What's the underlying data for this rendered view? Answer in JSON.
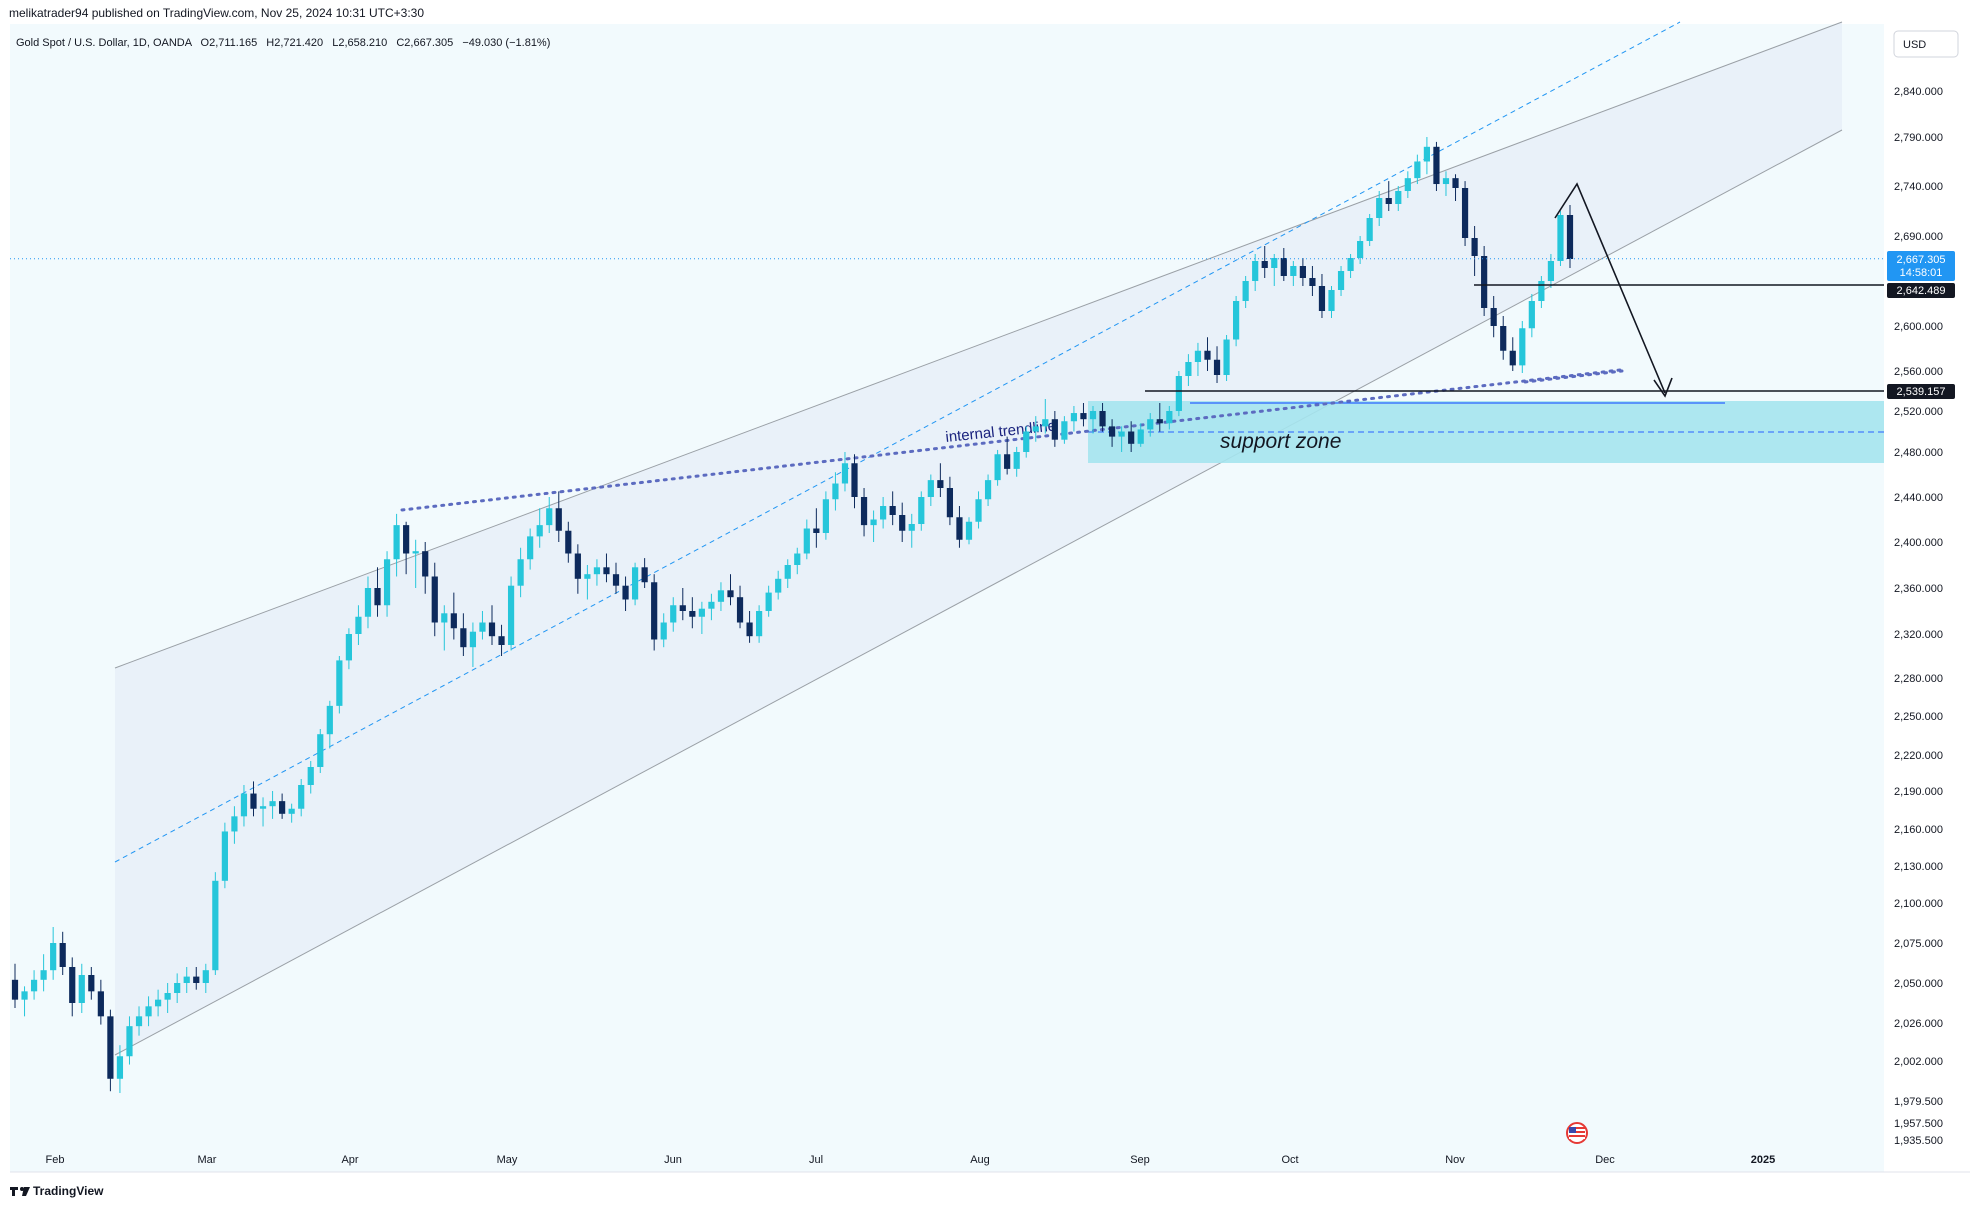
{
  "header": {
    "publish_line": "melikatrader94 published on TradingView.com, Nov 25, 2024 10:31 UTC+3:30"
  },
  "symbol_bar": {
    "name": "Gold Spot / U.S. Dollar, 1D, OANDA",
    "open": "O2,711.165",
    "high": "H2,721.420",
    "low": "L2,658.210",
    "close": "C2,667.305",
    "change": "−49.030 (−1.81%)"
  },
  "currency_button": "USD",
  "price_axis": {
    "ticks": [
      "2,840.000",
      "2,790.000",
      "2,740.000",
      "2,690.000",
      "2,600.000",
      "2,560.000",
      "2,520.000",
      "2,480.000",
      "2,440.000",
      "2,400.000",
      "2,360.000",
      "2,320.000",
      "2,280.000",
      "2,250.000",
      "2,220.000",
      "2,190.000",
      "2,160.000",
      "2,130.000",
      "2,100.000",
      "2,075.000",
      "2,050.000",
      "2,026.000",
      "2,002.000",
      "1,979.500",
      "1,957.500",
      "1,935.500"
    ],
    "current_price_label": "2,667.305",
    "countdown_label": "14:58:01",
    "level_1_label": "2,642.489",
    "level_2_label": "2,539.157"
  },
  "time_axis": {
    "labels": [
      "Feb",
      "Mar",
      "Apr",
      "May",
      "Jun",
      "Jul",
      "Aug",
      "Sep",
      "Oct",
      "Nov",
      "Dec",
      "2025"
    ]
  },
  "annotations": {
    "internal_trendline": "internal trendline",
    "support_zone": "support zone"
  },
  "footer": {
    "brand": "TradingView"
  },
  "colors": {
    "up": "#26c6da",
    "down": "#0d2a5c",
    "zone": "#a5e4ee",
    "channel": "#eef2f9",
    "mid_dash": "#2196f3",
    "trendline": "#5c6bc0",
    "current_price": "#2196f3",
    "level_tag": "#131722"
  },
  "chart_data": {
    "type": "candlestick",
    "symbol": "Gold Spot / U.S. Dollar",
    "interval": "1D",
    "y_range": [
      1920,
      2870
    ],
    "x_labels": [
      "Feb",
      "Mar",
      "Apr",
      "May",
      "Jun",
      "Jul",
      "Aug",
      "Sep",
      "Oct",
      "Nov",
      "Dec",
      "2025"
    ],
    "last_bar": {
      "open": 2711.165,
      "high": 2721.42,
      "low": 2658.21,
      "close": 2667.305
    },
    "levels": [
      2642.489,
      2539.157
    ],
    "support_zone": [
      2470,
      2530
    ],
    "candles": [
      [
        2052,
        2062,
        2035,
        2040
      ],
      [
        2040,
        2048,
        2030,
        2045
      ],
      [
        2045,
        2058,
        2040,
        2052
      ],
      [
        2052,
        2068,
        2045,
        2058
      ],
      [
        2058,
        2085,
        2052,
        2075
      ],
      [
        2075,
        2082,
        2055,
        2060
      ],
      [
        2060,
        2066,
        2030,
        2038
      ],
      [
        2038,
        2062,
        2032,
        2055
      ],
      [
        2055,
        2060,
        2040,
        2045
      ],
      [
        2045,
        2052,
        2025,
        2030
      ],
      [
        2030,
        2034,
        1985,
        1992
      ],
      [
        1992,
        2012,
        1984,
        2005
      ],
      [
        2005,
        2030,
        2000,
        2024
      ],
      [
        2024,
        2036,
        2018,
        2030
      ],
      [
        2030,
        2042,
        2024,
        2036
      ],
      [
        2036,
        2046,
        2030,
        2040
      ],
      [
        2040,
        2050,
        2032,
        2044
      ],
      [
        2044,
        2056,
        2038,
        2050
      ],
      [
        2050,
        2060,
        2044,
        2054
      ],
      [
        2054,
        2060,
        2046,
        2050
      ],
      [
        2050,
        2062,
        2044,
        2058
      ],
      [
        2058,
        2125,
        2055,
        2118
      ],
      [
        2118,
        2165,
        2112,
        2158
      ],
      [
        2158,
        2178,
        2148,
        2170
      ],
      [
        2170,
        2195,
        2162,
        2188
      ],
      [
        2188,
        2198,
        2170,
        2176
      ],
      [
        2176,
        2185,
        2162,
        2178
      ],
      [
        2178,
        2190,
        2168,
        2182
      ],
      [
        2182,
        2188,
        2168,
        2172
      ],
      [
        2172,
        2180,
        2165,
        2176
      ],
      [
        2176,
        2200,
        2170,
        2195
      ],
      [
        2195,
        2215,
        2188,
        2210
      ],
      [
        2210,
        2240,
        2205,
        2236
      ],
      [
        2236,
        2262,
        2225,
        2258
      ],
      [
        2258,
        2300,
        2252,
        2296
      ],
      [
        2296,
        2325,
        2288,
        2320
      ],
      [
        2320,
        2345,
        2310,
        2335
      ],
      [
        2335,
        2370,
        2325,
        2360
      ],
      [
        2360,
        2378,
        2335,
        2345
      ],
      [
        2345,
        2392,
        2335,
        2385
      ],
      [
        2385,
        2425,
        2370,
        2415
      ],
      [
        2415,
        2418,
        2372,
        2390
      ],
      [
        2390,
        2402,
        2360,
        2392
      ],
      [
        2392,
        2400,
        2355,
        2370
      ],
      [
        2370,
        2382,
        2318,
        2330
      ],
      [
        2330,
        2345,
        2305,
        2338
      ],
      [
        2338,
        2356,
        2315,
        2325
      ],
      [
        2325,
        2338,
        2300,
        2308
      ],
      [
        2308,
        2330,
        2290,
        2322
      ],
      [
        2322,
        2340,
        2315,
        2330
      ],
      [
        2330,
        2345,
        2310,
        2318
      ],
      [
        2318,
        2328,
        2300,
        2310
      ],
      [
        2310,
        2370,
        2305,
        2362
      ],
      [
        2362,
        2395,
        2352,
        2385
      ],
      [
        2385,
        2412,
        2376,
        2405
      ],
      [
        2405,
        2430,
        2395,
        2415
      ],
      [
        2415,
        2440,
        2408,
        2430
      ],
      [
        2430,
        2445,
        2400,
        2410
      ],
      [
        2410,
        2418,
        2382,
        2390
      ],
      [
        2390,
        2398,
        2355,
        2368
      ],
      [
        2368,
        2380,
        2350,
        2372
      ],
      [
        2372,
        2385,
        2362,
        2378
      ],
      [
        2378,
        2390,
        2365,
        2372
      ],
      [
        2372,
        2382,
        2355,
        2362
      ],
      [
        2362,
        2370,
        2340,
        2350
      ],
      [
        2350,
        2382,
        2345,
        2378
      ],
      [
        2378,
        2386,
        2360,
        2365
      ],
      [
        2365,
        2372,
        2305,
        2315
      ],
      [
        2315,
        2338,
        2308,
        2330
      ],
      [
        2330,
        2352,
        2322,
        2345
      ],
      [
        2345,
        2360,
        2332,
        2340
      ],
      [
        2340,
        2352,
        2325,
        2335
      ],
      [
        2335,
        2348,
        2320,
        2342
      ],
      [
        2342,
        2355,
        2332,
        2348
      ],
      [
        2348,
        2365,
        2340,
        2358
      ],
      [
        2358,
        2372,
        2345,
        2352
      ],
      [
        2352,
        2362,
        2325,
        2330
      ],
      [
        2330,
        2340,
        2312,
        2318
      ],
      [
        2318,
        2345,
        2312,
        2340
      ],
      [
        2340,
        2362,
        2335,
        2356
      ],
      [
        2356,
        2375,
        2350,
        2368
      ],
      [
        2368,
        2385,
        2360,
        2380
      ],
      [
        2380,
        2395,
        2372,
        2390
      ],
      [
        2390,
        2420,
        2385,
        2412
      ],
      [
        2412,
        2430,
        2395,
        2408
      ],
      [
        2408,
        2445,
        2402,
        2438
      ],
      [
        2438,
        2462,
        2428,
        2452
      ],
      [
        2452,
        2480,
        2445,
        2470
      ],
      [
        2470,
        2478,
        2430,
        2440
      ],
      [
        2440,
        2448,
        2405,
        2415
      ],
      [
        2415,
        2428,
        2400,
        2420
      ],
      [
        2420,
        2440,
        2412,
        2432
      ],
      [
        2432,
        2445,
        2415,
        2424
      ],
      [
        2424,
        2435,
        2400,
        2410
      ],
      [
        2410,
        2425,
        2395,
        2416
      ],
      [
        2416,
        2445,
        2410,
        2440
      ],
      [
        2440,
        2460,
        2432,
        2455
      ],
      [
        2455,
        2470,
        2440,
        2448
      ],
      [
        2448,
        2458,
        2415,
        2422
      ],
      [
        2422,
        2432,
        2395,
        2402
      ],
      [
        2402,
        2422,
        2398,
        2418
      ],
      [
        2418,
        2445,
        2412,
        2438
      ],
      [
        2438,
        2460,
        2432,
        2455
      ],
      [
        2455,
        2482,
        2450,
        2478
      ],
      [
        2478,
        2495,
        2460,
        2465
      ],
      [
        2465,
        2485,
        2458,
        2480
      ],
      [
        2480,
        2505,
        2475,
        2500
      ],
      [
        2500,
        2515,
        2490,
        2505
      ],
      [
        2505,
        2532,
        2498,
        2512
      ],
      [
        2512,
        2520,
        2485,
        2492
      ],
      [
        2492,
        2515,
        2488,
        2510
      ],
      [
        2510,
        2525,
        2500,
        2518
      ],
      [
        2518,
        2528,
        2505,
        2512
      ],
      [
        2512,
        2525,
        2498,
        2520
      ],
      [
        2520,
        2528,
        2500,
        2505
      ],
      [
        2505,
        2512,
        2485,
        2495
      ],
      [
        2495,
        2505,
        2480,
        2500
      ],
      [
        2500,
        2510,
        2480,
        2488
      ],
      [
        2488,
        2508,
        2485,
        2502
      ],
      [
        2502,
        2518,
        2495,
        2512
      ],
      [
        2512,
        2528,
        2500,
        2508
      ],
      [
        2508,
        2525,
        2502,
        2520
      ],
      [
        2520,
        2560,
        2515,
        2555
      ],
      [
        2555,
        2575,
        2545,
        2568
      ],
      [
        2568,
        2585,
        2555,
        2578
      ],
      [
        2578,
        2590,
        2560,
        2570
      ],
      [
        2570,
        2582,
        2548,
        2556
      ],
      [
        2556,
        2592,
        2550,
        2588
      ],
      [
        2588,
        2630,
        2582,
        2625
      ],
      [
        2625,
        2650,
        2618,
        2645
      ],
      [
        2645,
        2672,
        2635,
        2665
      ],
      [
        2665,
        2680,
        2648,
        2658
      ],
      [
        2658,
        2672,
        2640,
        2668
      ],
      [
        2668,
        2678,
        2645,
        2650
      ],
      [
        2650,
        2665,
        2640,
        2660
      ],
      [
        2660,
        2668,
        2640,
        2648
      ],
      [
        2648,
        2660,
        2630,
        2640
      ],
      [
        2640,
        2652,
        2608,
        2615
      ],
      [
        2615,
        2640,
        2608,
        2636
      ],
      [
        2636,
        2660,
        2630,
        2655
      ],
      [
        2655,
        2672,
        2648,
        2668
      ],
      [
        2668,
        2690,
        2662,
        2685
      ],
      [
        2685,
        2712,
        2680,
        2708
      ],
      [
        2708,
        2735,
        2700,
        2728
      ],
      [
        2728,
        2745,
        2715,
        2722
      ],
      [
        2722,
        2740,
        2715,
        2735
      ],
      [
        2735,
        2755,
        2728,
        2748
      ],
      [
        2748,
        2772,
        2742,
        2765
      ],
      [
        2765,
        2790,
        2752,
        2780
      ],
      [
        2780,
        2785,
        2735,
        2742
      ],
      [
        2742,
        2755,
        2730,
        2748
      ],
      [
        2748,
        2752,
        2725,
        2738
      ],
      [
        2738,
        2745,
        2680,
        2688
      ],
      [
        2688,
        2700,
        2650,
        2670
      ],
      [
        2670,
        2680,
        2610,
        2618
      ],
      [
        2618,
        2630,
        2590,
        2600
      ],
      [
        2600,
        2610,
        2570,
        2578
      ],
      [
        2578,
        2590,
        2560,
        2565
      ],
      [
        2565,
        2605,
        2558,
        2598
      ],
      [
        2598,
        2632,
        2590,
        2625
      ],
      [
        2625,
        2650,
        2618,
        2645
      ],
      [
        2645,
        2672,
        2638,
        2665
      ],
      [
        2665,
        2715,
        2660,
        2711
      ],
      [
        2711,
        2721,
        2658,
        2667
      ]
    ]
  }
}
